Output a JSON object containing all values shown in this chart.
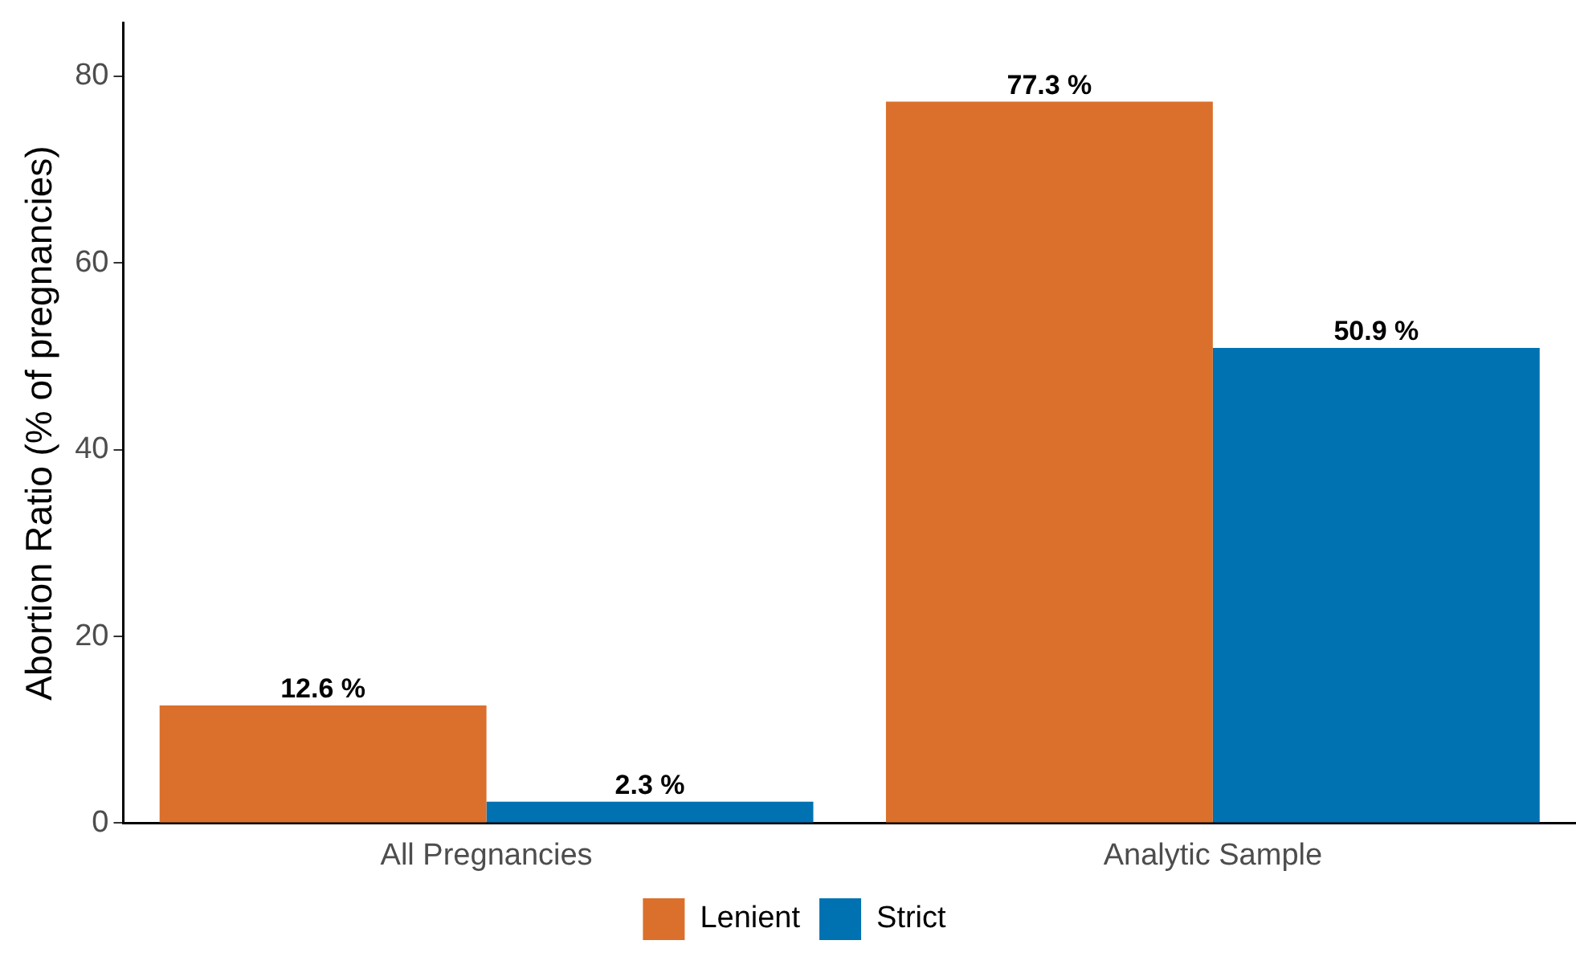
{
  "chart_data": {
    "type": "bar",
    "ylabel": "Abortion Ratio (% of pregnancies)",
    "categories": [
      "All Pregnancies",
      "Analytic Sample"
    ],
    "series": [
      {
        "name": "Lenient",
        "color": "#da702b",
        "values": [
          12.6,
          77.3
        ],
        "value_labels": [
          "12.6 %",
          "77.3 %"
        ]
      },
      {
        "name": "Strict",
        "color": "#0072b2",
        "values": [
          2.3,
          50.9
        ],
        "value_labels": [
          "2.3 %",
          "50.9 %"
        ]
      }
    ],
    "ylim": [
      0,
      85.7
    ],
    "yticks": [
      0,
      20,
      40,
      60,
      80
    ],
    "grid": false,
    "legend": "bottom"
  }
}
